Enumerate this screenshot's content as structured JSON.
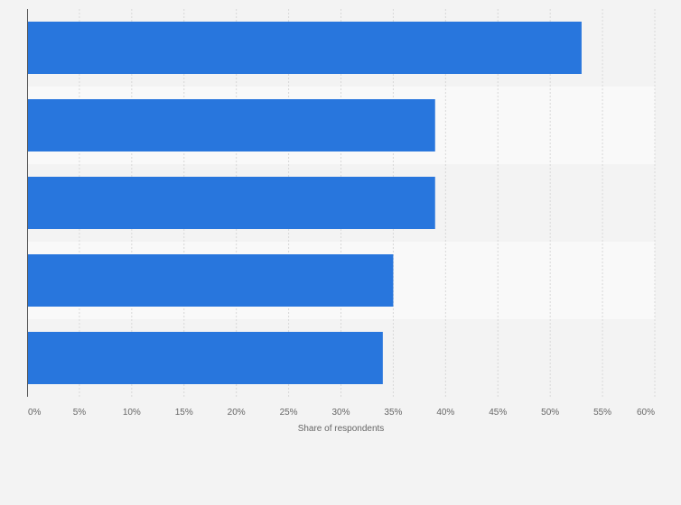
{
  "chart_data": {
    "type": "bar",
    "orientation": "horizontal",
    "categories": [
      "",
      "",
      "",
      "",
      ""
    ],
    "values": [
      53,
      39,
      39,
      35,
      34
    ],
    "xlabel": "Share of respondents",
    "ylabel": "",
    "xlim": [
      0,
      60
    ],
    "x_tick_labels": [
      "0%",
      "5%",
      "10%",
      "15%",
      "20%",
      "25%",
      "30%",
      "35%",
      "40%",
      "45%",
      "50%",
      "55%",
      "60%"
    ],
    "grid": true,
    "grid_style": "dashed vertical",
    "legend": "none",
    "colors": {
      "bar": "#2876dd",
      "page_background": "#f3f3f3",
      "band_light": "#f9f9f9",
      "band_dark": "#f3f3f3",
      "grid": "#d8d8d8",
      "axis": "#555555",
      "tick_text": "#666666"
    }
  }
}
